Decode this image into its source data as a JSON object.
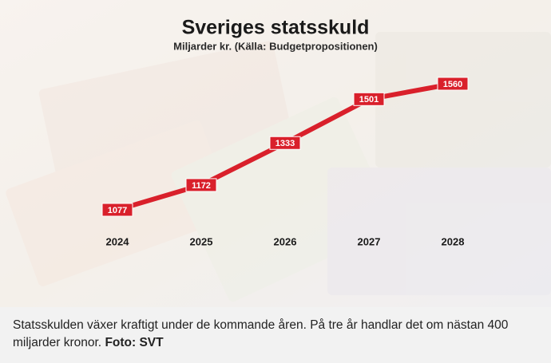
{
  "chart_data": {
    "type": "line",
    "title": "Sveriges statsskuld",
    "subtitle": "Miljarder kr. (Källa: Budgetpropositionen)",
    "categories": [
      "2024",
      "2025",
      "2026",
      "2027",
      "2028"
    ],
    "values": [
      1077,
      1172,
      1333,
      1501,
      1560
    ],
    "color": "#d9202b"
  },
  "caption": {
    "text": "Statsskulden växer kraftigt under de kommande åren. På tre år handlar det om nästan 400 miljarder kronor.",
    "credit": "Foto: SVT"
  }
}
